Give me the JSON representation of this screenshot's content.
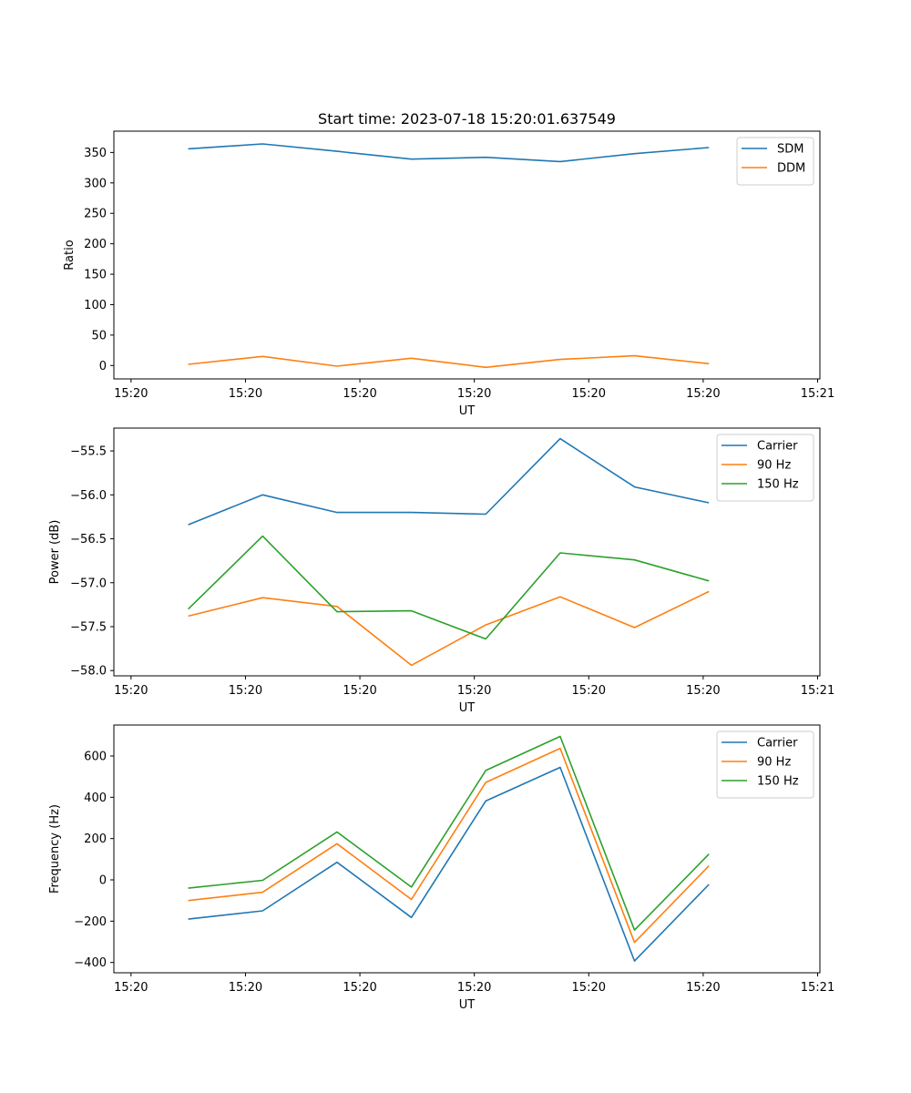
{
  "figure": {
    "title": "Start time: 2023-07-18 15:20:01.637549"
  },
  "colors": {
    "blue": "#1f77b4",
    "orange": "#ff7f0e",
    "green": "#2ca02c"
  },
  "chart_data": [
    {
      "type": "line",
      "title": "Start time: 2023-07-18 15:20:01.637549",
      "xlabel": "UT",
      "ylabel": "Ratio",
      "x_ticks": [
        "15:20",
        "15:20",
        "15:20",
        "15:20",
        "15:20",
        "15:20",
        "15:21"
      ],
      "x_tick_positions": [
        0.0,
        1.0,
        2.0,
        3.0,
        4.0,
        5.0,
        6.0
      ],
      "xlim": [
        -0.15,
        6.02
      ],
      "ylim": [
        -22,
        385
      ],
      "y_ticks": [
        0,
        50,
        100,
        150,
        200,
        250,
        300,
        350
      ],
      "legend_position": "top-right",
      "x": [
        0.5,
        1.15,
        1.8,
        2.45,
        3.1,
        3.75,
        4.4,
        5.05
      ],
      "series": [
        {
          "name": "SDM",
          "color": "#1f77b4",
          "values": [
            356,
            364,
            352,
            339,
            342,
            335,
            348,
            358
          ]
        },
        {
          "name": "DDM",
          "color": "#ff7f0e",
          "values": [
            2,
            15,
            -1,
            12,
            -3,
            10,
            16,
            3
          ]
        }
      ]
    },
    {
      "type": "line",
      "xlabel": "UT",
      "ylabel": "Power (dB)",
      "x_ticks": [
        "15:20",
        "15:20",
        "15:20",
        "15:20",
        "15:20",
        "15:20",
        "15:21"
      ],
      "x_tick_positions": [
        0.0,
        1.0,
        2.0,
        3.0,
        4.0,
        5.0,
        6.0
      ],
      "xlim": [
        -0.15,
        6.02
      ],
      "ylim": [
        -58.06,
        -55.24
      ],
      "y_ticks": [
        -58.0,
        -57.5,
        -57.0,
        -56.5,
        -56.0,
        -55.5
      ],
      "y_tick_labels": [
        "−58.0",
        "−57.5",
        "−57.0",
        "−56.5",
        "−56.0",
        "−55.5"
      ],
      "legend_position": "top-right",
      "x": [
        0.5,
        1.15,
        1.8,
        2.45,
        3.1,
        3.75,
        4.4,
        5.05
      ],
      "series": [
        {
          "name": "Carrier",
          "color": "#1f77b4",
          "values": [
            -56.34,
            -56.0,
            -56.2,
            -56.2,
            -56.22,
            -55.36,
            -55.91,
            -56.09
          ]
        },
        {
          "name": "90 Hz",
          "color": "#ff7f0e",
          "values": [
            -57.38,
            -57.17,
            -57.27,
            -57.94,
            -57.48,
            -57.16,
            -57.51,
            -57.1
          ]
        },
        {
          "name": "150 Hz",
          "color": "#2ca02c",
          "values": [
            -57.3,
            -56.47,
            -57.33,
            -57.32,
            -57.64,
            -56.66,
            -56.74,
            -56.98
          ]
        }
      ]
    },
    {
      "type": "line",
      "xlabel": "UT",
      "ylabel": "Frequency (Hz)",
      "x_ticks": [
        "15:20",
        "15:20",
        "15:20",
        "15:20",
        "15:20",
        "15:20",
        "15:21"
      ],
      "x_tick_positions": [
        0.0,
        1.0,
        2.0,
        3.0,
        4.0,
        5.0,
        6.0
      ],
      "xlim": [
        -0.15,
        6.02
      ],
      "ylim": [
        -450,
        750
      ],
      "y_ticks": [
        -400,
        -200,
        0,
        200,
        400,
        600
      ],
      "y_tick_labels": [
        "−400",
        "−200",
        "0",
        "200",
        "400",
        "600"
      ],
      "legend_position": "top-right",
      "x": [
        0.5,
        1.15,
        1.8,
        2.45,
        3.1,
        3.75,
        4.4,
        5.05
      ],
      "series": [
        {
          "name": "Carrier",
          "color": "#1f77b4",
          "values": [
            -190,
            -150,
            85,
            -182,
            382,
            545,
            -393,
            -22
          ]
        },
        {
          "name": "90 Hz",
          "color": "#ff7f0e",
          "values": [
            -100,
            -60,
            175,
            -95,
            472,
            637,
            -303,
            68
          ]
        },
        {
          "name": "150 Hz",
          "color": "#2ca02c",
          "values": [
            -40,
            -2,
            232,
            -35,
            530,
            695,
            -243,
            125
          ]
        }
      ]
    }
  ]
}
